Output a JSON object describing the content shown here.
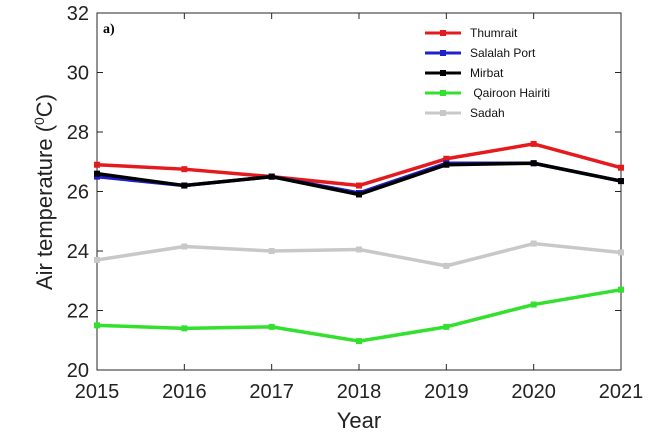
{
  "chart_data": {
    "type": "line",
    "panel_label": "a)",
    "xlabel": "Year",
    "ylabel_main": "Air temperature (",
    "ylabel_sup": "0",
    "ylabel_end": "C)",
    "x": [
      2015,
      2016,
      2017,
      2018,
      2019,
      2020,
      2021
    ],
    "x_tick_labels": [
      "2015",
      "2016",
      "2017",
      "2018",
      "2019",
      "2020",
      "2021"
    ],
    "y_tick_labels": [
      "20",
      "22",
      "24",
      "26",
      "28",
      "30",
      "32"
    ],
    "y_ticks": [
      20,
      22,
      24,
      26,
      28,
      30,
      32
    ],
    "xlim": [
      2015,
      2021
    ],
    "ylim": [
      20,
      32
    ],
    "grid": false,
    "legend_position": "top-right",
    "series": [
      {
        "name": "Thumrait",
        "color": "#e41a1c",
        "values": [
          26.9,
          26.75,
          26.5,
          26.2,
          27.1,
          27.6,
          26.8
        ]
      },
      {
        "name": "Salalah Port",
        "color": "#1f1fd0",
        "values": [
          26.5,
          26.2,
          26.5,
          25.95,
          26.95,
          26.95,
          26.35
        ]
      },
      {
        "name": "Mirbat",
        "color": "#000000",
        "values": [
          26.6,
          26.2,
          26.5,
          25.9,
          26.9,
          26.95,
          26.35
        ]
      },
      {
        "name": " Qairoon Hairiti",
        "color": "#33e02e",
        "values": [
          21.5,
          21.4,
          21.45,
          20.97,
          21.45,
          22.2,
          22.7
        ]
      },
      {
        "name": "Sadah",
        "color": "#c8c8c8",
        "values": [
          23.7,
          24.15,
          24.0,
          24.05,
          23.5,
          24.25,
          23.95
        ]
      }
    ]
  }
}
